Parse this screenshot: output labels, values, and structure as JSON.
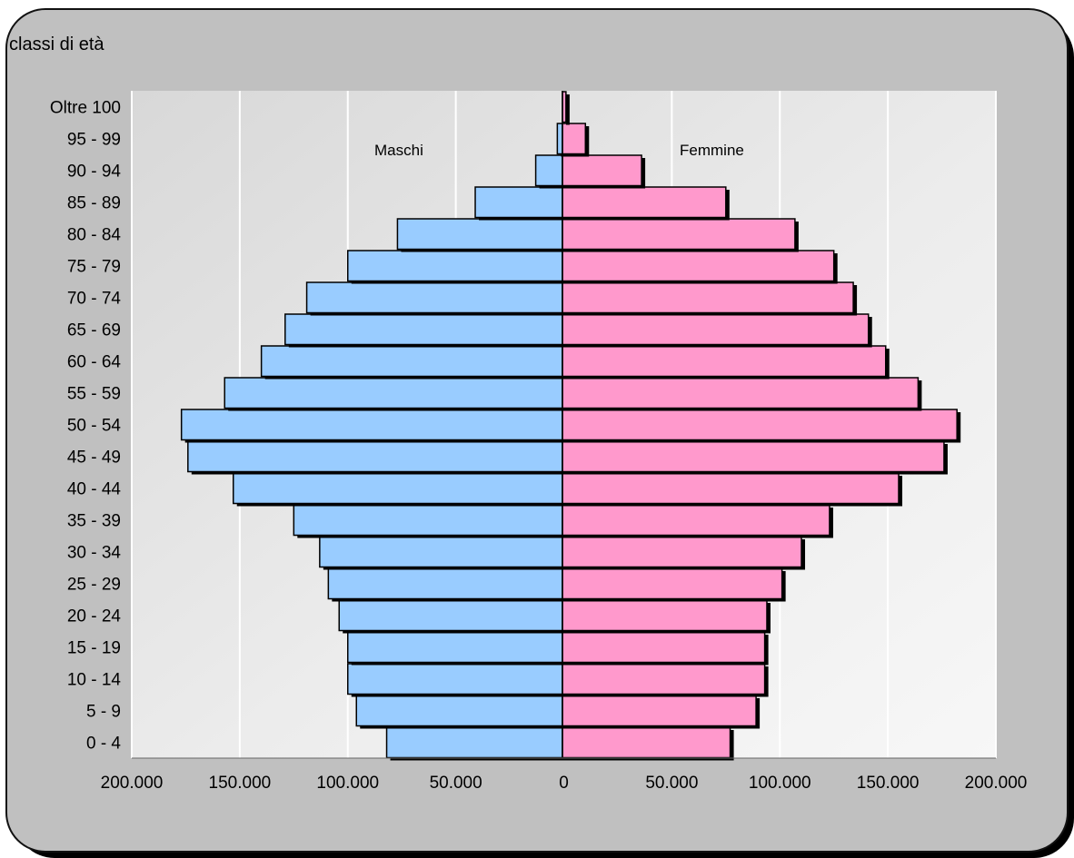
{
  "chart_data": {
    "type": "bar",
    "orientation": "horizontal",
    "layout": "population-pyramid",
    "ylabel": "classi di età",
    "categories": [
      "0 - 4",
      "5 - 9",
      "10 - 14",
      "15 - 19",
      "20 - 24",
      "25 - 29",
      "30 - 34",
      "35 - 39",
      "40 - 44",
      "45 - 49",
      "50 - 54",
      "55 - 59",
      "60 - 64",
      "65 - 69",
      "70 - 74",
      "75 - 79",
      "80 - 84",
      "85 - 89",
      "90 - 94",
      "95 - 99",
      "Oltre 100"
    ],
    "series": [
      {
        "name": "Maschi",
        "side": "left",
        "color": "#99ccff",
        "values": [
          82000,
          96000,
          100000,
          100000,
          104000,
          109000,
          113000,
          125000,
          153000,
          174000,
          177000,
          157000,
          140000,
          129000,
          119000,
          100000,
          77000,
          41000,
          13000,
          3000,
          500
        ]
      },
      {
        "name": "Femmine",
        "side": "right",
        "color": "#ff99cc",
        "values": [
          77000,
          89000,
          93000,
          93000,
          94000,
          101000,
          110000,
          123000,
          155000,
          176000,
          182000,
          164000,
          149000,
          141000,
          134000,
          125000,
          107000,
          75000,
          36000,
          10000,
          1000
        ]
      }
    ],
    "xlim": [
      -200000,
      200000
    ],
    "x_ticks": [
      -200000,
      -150000,
      -100000,
      -50000,
      0,
      50000,
      100000,
      150000,
      200000
    ],
    "x_tick_labels": [
      "200.000",
      "150.000",
      "100.000",
      "50.000",
      "0",
      "50.000",
      "100.000",
      "150.000",
      "200.000"
    ],
    "grid": "vertical",
    "legend": "inline labels"
  }
}
